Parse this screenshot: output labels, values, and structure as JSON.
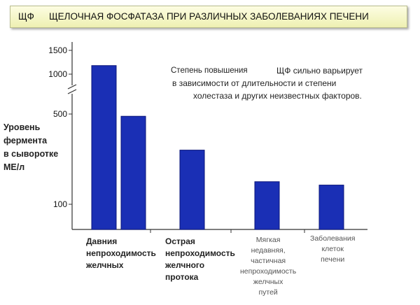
{
  "title": {
    "abbr": "ЩФ",
    "text": "ЩЕЛОЧНАЯ ФОСФАТАЗА ПРИ РАЗЛИЧНЫХ ЗАБОЛЕВАНИЯХ ПЕЧЕНИ"
  },
  "y_axis_label": "Уровень\nфермента\nв сыворотке\nМЕ/л",
  "notes": {
    "sub": "Степень повышения",
    "main_1": "ЩФ сильно варьирует",
    "main_2": "в зависимости от длительности и степени",
    "main_3": "холестаза и других неизвестных факторов."
  },
  "category_labels": [
    "Давния\nнепроходимость\nжелчных",
    "Острая\nнепроходимость\nжелчного\nпротока",
    "Мягкая\nнедавняя,\nчастичная\nнепроходимость\nжелчных\nпутей",
    "Заболевания\nклеток\nпечени"
  ],
  "colors": {
    "bar": "#1a2fb5",
    "bar_edge": "#0a157a",
    "axis": "#333333",
    "title_bg": "#f6f7c8"
  },
  "chart_data": {
    "type": "bar",
    "y_scale": "broken",
    "y_ticks": [
      100,
      500,
      1000,
      1500
    ],
    "y_break_between": [
      500,
      1000
    ],
    "ylabel": "Уровень фермента в сыворотке МЕ/л",
    "grid": false,
    "bars": [
      {
        "category": "Давния непроходимость желчных",
        "value": 1180
      },
      {
        "category": "Давния непроходимость желчных",
        "value": 490
      },
      {
        "category": "Острая непроходимость желчного протока",
        "value": 340
      },
      {
        "category": "Мягкая недавняя, частичная непроходимость желчных путей",
        "value": 200
      },
      {
        "category": "Заболевания клеток печени",
        "value": 185
      }
    ]
  }
}
